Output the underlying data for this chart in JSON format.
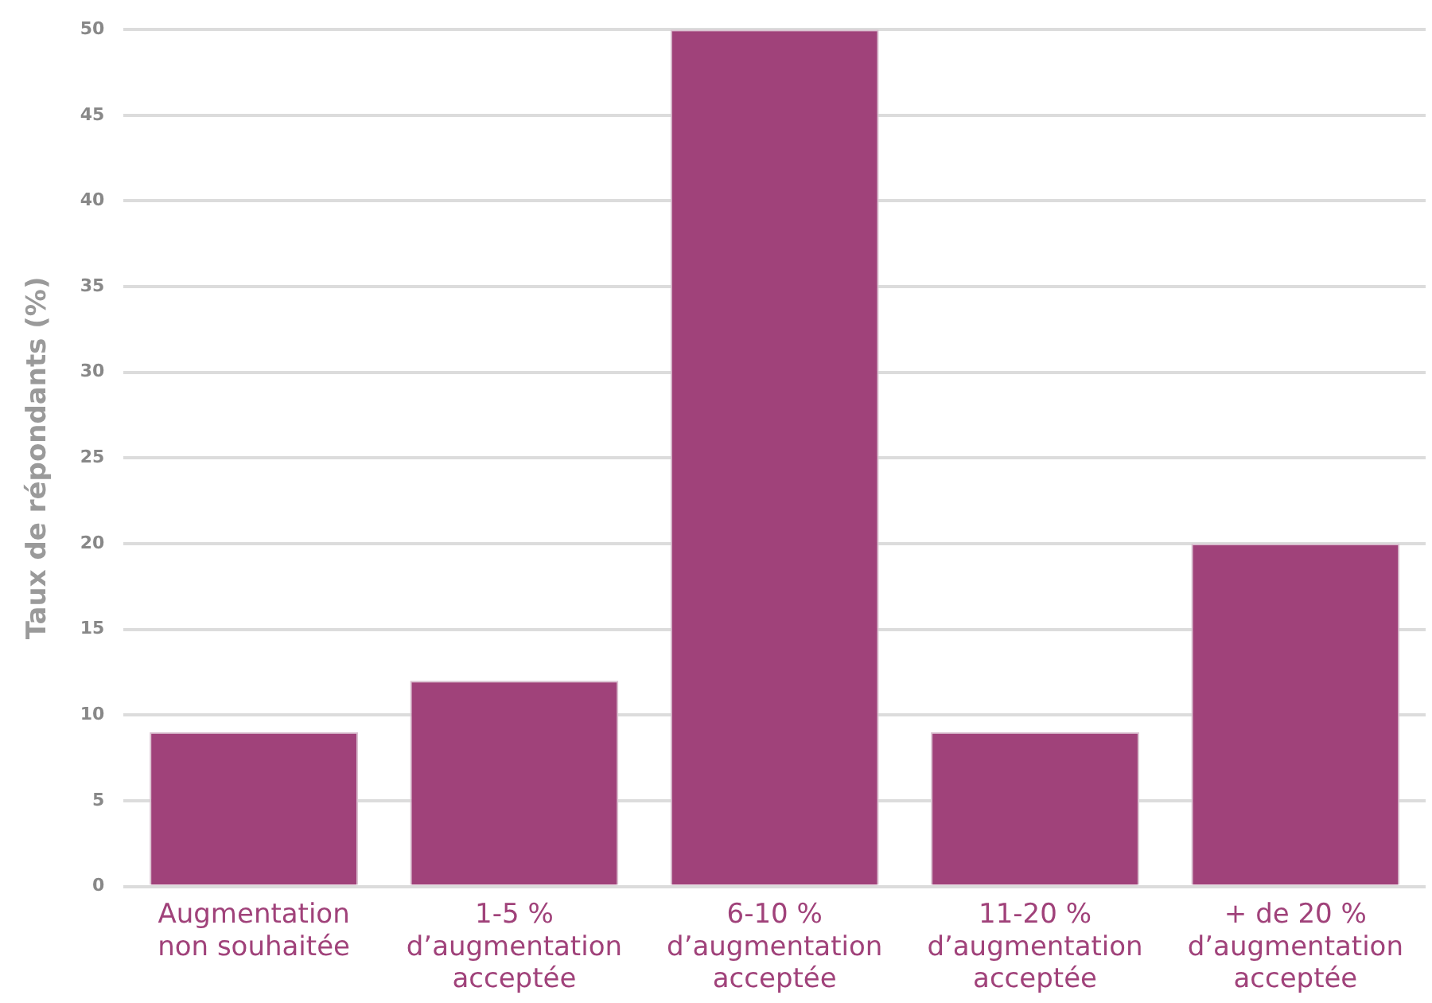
{
  "chart_data": {
    "type": "bar",
    "ylabel": "Taux de répondants (%)",
    "categories": [
      "Augmentation non souhaitée",
      "1-5 % d’augmentation acceptée",
      "6-10 % d’augmentation acceptée",
      "11-20 % d’augmentation acceptée",
      "+ de 20 % d’augmentation acceptée"
    ],
    "values": [
      9,
      12,
      50,
      9,
      20
    ],
    "color": "#a0427a",
    "ylim": [
      0,
      50
    ],
    "yticks": [
      0,
      5,
      10,
      15,
      20,
      25,
      30,
      35,
      40,
      45,
      50
    ],
    "grid": "y",
    "legend": false
  }
}
